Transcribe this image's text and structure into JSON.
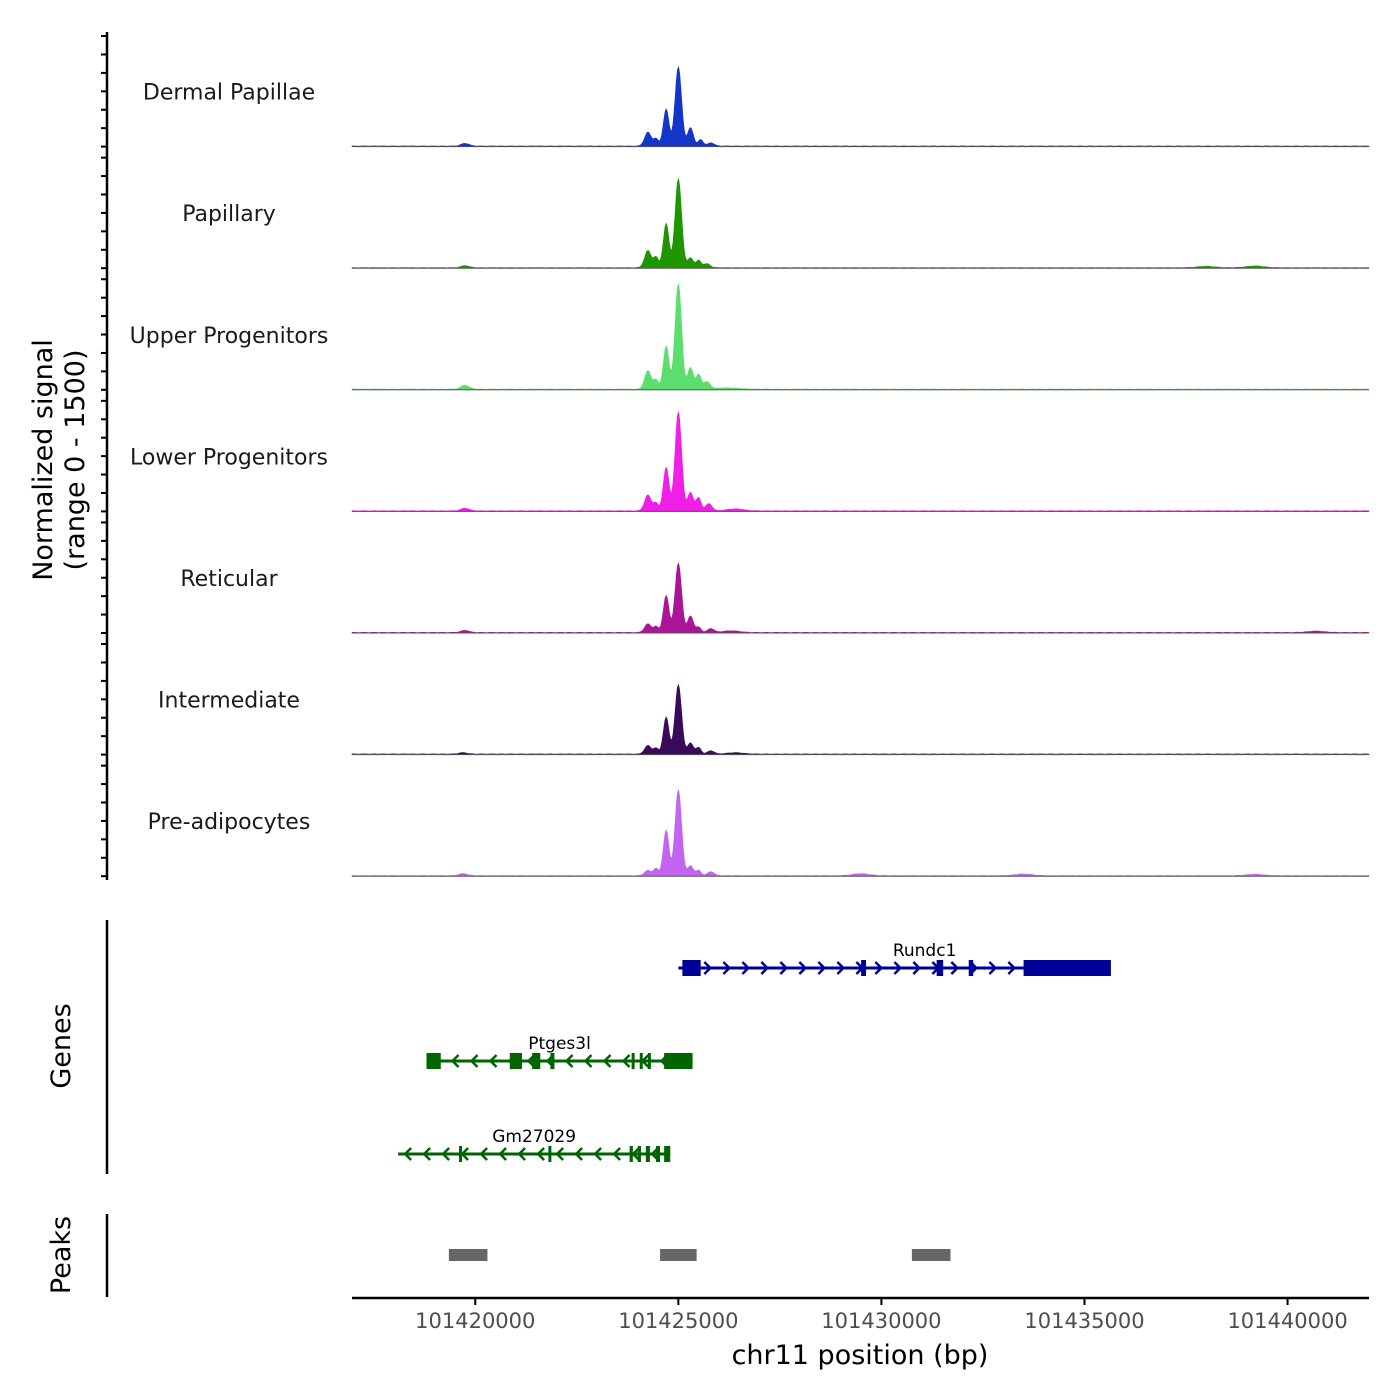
{
  "chart_data": {
    "type": "area",
    "title": "",
    "chromosome": "chr11",
    "xlabel": "chr11 position (bp)",
    "ylabel_line1": "Normalized signal",
    "ylabel_line2": "(range 0 - 1500)",
    "ylim": [
      0,
      1500
    ],
    "xlim": [
      101416965,
      101442005
    ],
    "x_ticks": [
      101420000,
      101425000,
      101430000,
      101435000,
      101440000
    ],
    "x_tick_labels": [
      "101420000",
      "101425000",
      "101430000",
      "101435000",
      "101440000"
    ],
    "tracks": [
      {
        "name": "Dermal Papillae",
        "color": "#1436c8",
        "peaks": [
          [
            101419750,
            40,
            100
          ],
          [
            101424250,
            210,
            80
          ],
          [
            101424450,
            110,
            60
          ],
          [
            101424700,
            560,
            70
          ],
          [
            101425000,
            1200,
            80
          ],
          [
            101425300,
            280,
            70
          ],
          [
            101425550,
            100,
            60
          ],
          [
            101425800,
            50,
            80
          ]
        ]
      },
      {
        "name": "Papillary",
        "color": "#1e9600",
        "peaks": [
          [
            101419750,
            30,
            100
          ],
          [
            101424250,
            260,
            80
          ],
          [
            101424450,
            160,
            60
          ],
          [
            101424700,
            670,
            70
          ],
          [
            101425000,
            1350,
            80
          ],
          [
            101425300,
            150,
            70
          ],
          [
            101425500,
            110,
            60
          ],
          [
            101425700,
            60,
            80
          ],
          [
            101438000,
            20,
            200
          ],
          [
            101439200,
            25,
            200
          ]
        ]
      },
      {
        "name": "Upper Progenitors",
        "color": "#5ade6e",
        "peaks": [
          [
            101419750,
            60,
            100
          ],
          [
            101424250,
            280,
            80
          ],
          [
            101424450,
            140,
            60
          ],
          [
            101424700,
            650,
            70
          ],
          [
            101425000,
            1600,
            80
          ],
          [
            101425300,
            330,
            70
          ],
          [
            101425500,
            220,
            60
          ],
          [
            101425700,
            110,
            80
          ],
          [
            101426200,
            20,
            300
          ]
        ]
      },
      {
        "name": "Lower Progenitors",
        "color": "#f01ee6",
        "peaks": [
          [
            101419750,
            40,
            100
          ],
          [
            101424250,
            240,
            80
          ],
          [
            101424450,
            120,
            60
          ],
          [
            101424700,
            660,
            70
          ],
          [
            101425000,
            1500,
            80
          ],
          [
            101425300,
            280,
            70
          ],
          [
            101425500,
            200,
            60
          ],
          [
            101425750,
            110,
            80
          ],
          [
            101426400,
            30,
            200
          ]
        ]
      },
      {
        "name": "Reticular",
        "color": "#aa1496",
        "peaks": [
          [
            101419750,
            30,
            100
          ],
          [
            101424250,
            130,
            80
          ],
          [
            101424450,
            90,
            60
          ],
          [
            101424700,
            560,
            70
          ],
          [
            101425000,
            1050,
            80
          ],
          [
            101425300,
            250,
            70
          ],
          [
            101425500,
            80,
            60
          ],
          [
            101425800,
            60,
            80
          ],
          [
            101426300,
            25,
            200
          ],
          [
            101440700,
            20,
            200
          ]
        ]
      },
      {
        "name": "Intermediate",
        "color": "#3a0a5a",
        "peaks": [
          [
            101419700,
            20,
            100
          ],
          [
            101424250,
            130,
            80
          ],
          [
            101424450,
            90,
            60
          ],
          [
            101424700,
            560,
            70
          ],
          [
            101425000,
            1050,
            80
          ],
          [
            101425300,
            170,
            70
          ],
          [
            101425500,
            100,
            60
          ],
          [
            101425800,
            50,
            80
          ],
          [
            101426400,
            20,
            200
          ]
        ]
      },
      {
        "name": "Pre-adipocytes",
        "color": "#c164f0",
        "peaks": [
          [
            101419700,
            30,
            100
          ],
          [
            101424250,
            80,
            80
          ],
          [
            101424450,
            110,
            60
          ],
          [
            101424700,
            690,
            70
          ],
          [
            101425000,
            1300,
            80
          ],
          [
            101425300,
            150,
            70
          ],
          [
            101425500,
            80,
            60
          ],
          [
            101425800,
            60,
            80
          ],
          [
            101429500,
            30,
            200
          ],
          [
            101433500,
            25,
            200
          ],
          [
            101439200,
            20,
            200
          ]
        ]
      }
    ],
    "genes_label": "Genes",
    "genes": [
      {
        "name": "Rundc1",
        "color": "#000096",
        "strand": "+",
        "row": 0,
        "start": 101425000,
        "end": 101435650,
        "exons": [
          [
            101425100,
            101425550
          ],
          [
            101429500,
            101429620
          ],
          [
            101431360,
            101431520
          ],
          [
            101432150,
            101432260
          ],
          [
            101433500,
            101435650
          ]
        ]
      },
      {
        "name": "Ptges3l",
        "color": "#006400",
        "strand": "-",
        "row": 1,
        "start": 101418800,
        "end": 101425350,
        "exons": [
          [
            101418800,
            101419150
          ],
          [
            101420850,
            101421150
          ],
          [
            101421400,
            101421600
          ],
          [
            101421850,
            101421950
          ],
          [
            101423850,
            101423920
          ],
          [
            101424050,
            101424120
          ],
          [
            101424250,
            101424320
          ],
          [
            101424650,
            101425350
          ]
        ]
      },
      {
        "name": "Gm27029",
        "color": "#006400",
        "strand": "-",
        "row": 2,
        "start": 101418100,
        "end": 101424800,
        "exons": [
          [
            101419600,
            101419650
          ],
          [
            101421800,
            101421850
          ],
          [
            101423800,
            101423880
          ],
          [
            101424000,
            101424080
          ],
          [
            101424200,
            101424300
          ],
          [
            101424450,
            101424550
          ],
          [
            101424650,
            101424800
          ]
        ]
      }
    ],
    "peaks_label": "Peaks",
    "peak_regions": [
      [
        101419350,
        101420300
      ],
      [
        101424550,
        101425450
      ],
      [
        101430750,
        101431700
      ]
    ]
  }
}
